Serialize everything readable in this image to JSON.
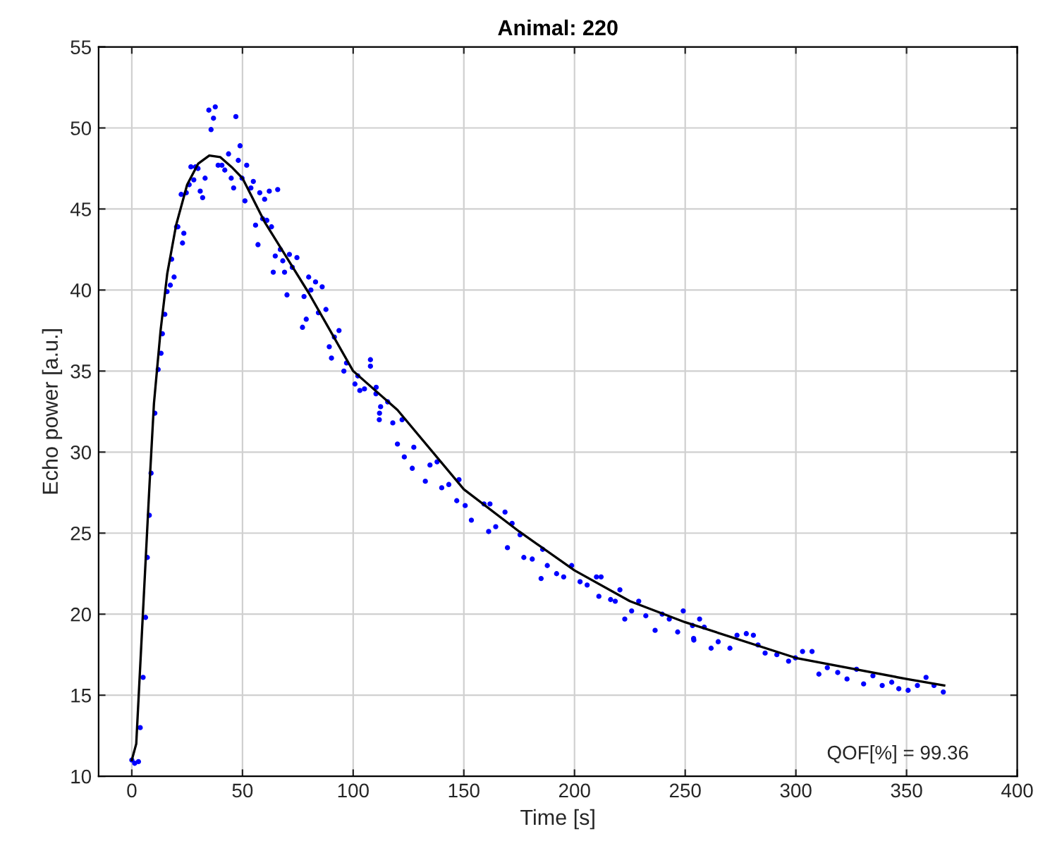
{
  "chart_data": {
    "type": "scatter",
    "title": "Animal: 220",
    "xlabel": "Time [s]",
    "ylabel": "Echo power [a.u.]",
    "xlim": [
      -15,
      400
    ],
    "ylim": [
      10,
      55
    ],
    "xticks": [
      0,
      50,
      100,
      150,
      200,
      250,
      300,
      350,
      400
    ],
    "yticks": [
      10,
      15,
      20,
      25,
      30,
      35,
      40,
      45,
      50,
      55
    ],
    "grid": true,
    "legend": false,
    "annotations": [
      "QOF[%] = 99.36"
    ],
    "series": [
      {
        "color": "#0000ff",
        "marker": "circle",
        "x": [
          0,
          1.3,
          3,
          3.8,
          5.1,
          6.2,
          7,
          7.9,
          8.7,
          10.4,
          11.9,
          13.2,
          13.8,
          14.9,
          15.9,
          17.4,
          18,
          19.1,
          20.2,
          20.8,
          23.5,
          22.9,
          22.3,
          24.6,
          25.9,
          26.7,
          28.8,
          28,
          30.9,
          32,
          33.1,
          29.9,
          34.8,
          37.7,
          36.9,
          35.8,
          39,
          40.7,
          42,
          43.7,
          44.9,
          46,
          47,
          48.1,
          48.9,
          49.8,
          51.9,
          51.1,
          53.8,
          54.9,
          57.8,
          60,
          62.1,
          65.9,
          55.9,
          57,
          59.1,
          61,
          63.1,
          64.8,
          67.1,
          63.9,
          68.2,
          69,
          70.1,
          71.2,
          72.5,
          74.6,
          77.1,
          77.8,
          78.8,
          79.9,
          80.9,
          83,
          84.3,
          86,
          87.7,
          89.2,
          90.2,
          91.5,
          93.6,
          95.8,
          97,
          100.8,
          102.1,
          105.1,
          107.8,
          110.4,
          111.9,
          107.8,
          103,
          110.3,
          112.4,
          115.6,
          111.8,
          117.9,
          122.1,
          120,
          123.1,
          127.4,
          126.7,
          132.6,
          134.7,
          137.9,
          140,
          143.2,
          147.8,
          146.8,
          150.6,
          153.4,
          159.1,
          161.8,
          161.2,
          164.4,
          168.6,
          171.8,
          169.7,
          175.4,
          177.1,
          180.9,
          185.6,
          184.9,
          187.7,
          191.9,
          195.1,
          198.7,
          202.5,
          205.7,
          209.9,
          212,
          211,
          216.3,
          220.5,
          218.4,
          222.7,
          225.8,
          229,
          232.2,
          236.4,
          239.6,
          242.8,
          246.6,
          249.1,
          253.8,
          256.5,
          253.3,
          253.9,
          258.6,
          261.7,
          264.9,
          270.2,
          273.4,
          277.6,
          280.8,
          282.9,
          286.1,
          291.4,
          296.7,
          299.8,
          303,
          307.3,
          310.4,
          314.2,
          318.9,
          323.1,
          327.4,
          330.6,
          334.8,
          339,
          343.3,
          346.5,
          350.7,
          354.9,
          358.8,
          362.4,
          366.6
        ],
        "values": [
          11,
          10.8,
          10.9,
          13,
          16.1,
          19.8,
          23.5,
          26.1,
          28.7,
          32.4,
          35.1,
          36.1,
          37.3,
          38.5,
          39.9,
          40.3,
          41.9,
          40.8,
          43.9,
          43.9,
          43.5,
          42.9,
          45.9,
          46,
          46.5,
          47.6,
          47.6,
          46.8,
          46.1,
          45.7,
          46.9,
          47.5,
          51.1,
          51.3,
          50.6,
          49.9,
          47.7,
          47.7,
          47.4,
          48.4,
          46.9,
          46.3,
          50.7,
          48,
          48.9,
          46.9,
          47.7,
          45.5,
          46.3,
          46.7,
          46,
          45.6,
          46.1,
          46.2,
          44,
          42.8,
          44.4,
          44.3,
          43.9,
          42.1,
          42.5,
          41.1,
          41.8,
          41.1,
          39.7,
          42.2,
          41.4,
          42,
          37.7,
          39.6,
          38.2,
          40.8,
          40,
          40.5,
          38.6,
          40.2,
          38.8,
          36.5,
          35.8,
          37.1,
          37.5,
          35,
          35.5,
          34.2,
          34.7,
          33.9,
          35.7,
          34,
          32.4,
          35.3,
          33.8,
          33.6,
          32.8,
          33.1,
          32,
          31.8,
          32,
          30.5,
          29.7,
          30.3,
          29,
          28.2,
          29.2,
          29.4,
          27.8,
          28,
          28.3,
          27,
          26.7,
          25.8,
          26.8,
          26.8,
          25.1,
          25.4,
          26.3,
          25.6,
          24.1,
          24.9,
          23.5,
          23.4,
          24,
          22.2,
          23,
          22.5,
          22.3,
          23,
          22,
          21.8,
          22.3,
          22.3,
          21.1,
          20.9,
          21.5,
          20.8,
          19.7,
          20.2,
          20.8,
          19.9,
          19,
          20,
          19.7,
          18.9,
          20.2,
          18.5,
          19.7,
          19.3,
          18.4,
          19.2,
          17.9,
          18.3,
          17.9,
          18.7,
          18.8,
          18.7,
          18.1,
          17.6,
          17.5,
          17.1,
          17.3,
          17.7,
          17.7,
          16.3,
          16.7,
          16.4,
          16,
          16.6,
          15.7,
          16.2,
          15.6,
          15.8,
          15.4,
          15.3,
          15.6,
          16.1,
          15.6,
          15.2
        ]
      },
      {
        "type": "line",
        "color": "#000000",
        "marker": "none",
        "line_style": "solid",
        "x": [
          0,
          2,
          5,
          8,
          10,
          13,
          16,
          20,
          25,
          30,
          35,
          40,
          45,
          50,
          60,
          70,
          80,
          90,
          100,
          120,
          150,
          175,
          200,
          225,
          250,
          300,
          350,
          367
        ],
        "values": [
          11,
          12,
          20,
          28,
          33,
          37.5,
          41,
          44,
          46.5,
          47.8,
          48.3,
          48.2,
          47.6,
          46.9,
          44.2,
          42,
          39.8,
          37.4,
          35,
          32.6,
          27.7,
          25.1,
          22.7,
          20.8,
          19.5,
          17.3,
          16,
          15.6
        ]
      }
    ]
  }
}
